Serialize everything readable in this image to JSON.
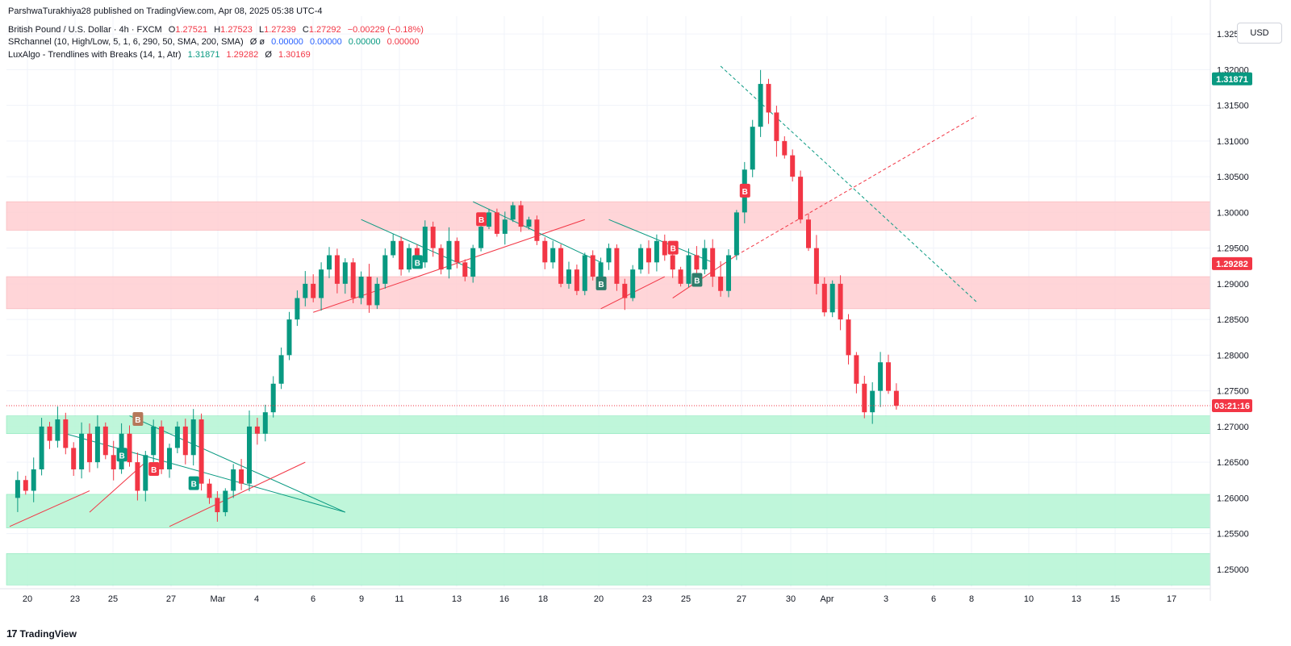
{
  "header": {
    "published": "ParshwaTurakhiya28 published on TradingView.com, Apr 08, 2025 05:38 UTC-4",
    "symbol": "British Pound / U.S. Dollar · 4h · FXCM",
    "ohlc": {
      "o_label": "O",
      "o": "1.27521",
      "h_label": "H",
      "h": "1.27523",
      "l_label": "L",
      "l": "1.27239",
      "c_label": "C",
      "c": "1.27292",
      "change": "−0.00229 (−0.18%)"
    },
    "indicator1": {
      "name": "SRchannel (10, High/Low, 5, 1, 6, 290, 50, SMA, 200, SMA)",
      "mark": "Ø ø",
      "v1": "0.00000",
      "v2": "0.00000",
      "v3": "0.00000",
      "v4": "0.00000"
    },
    "indicator2": {
      "name": "LuxAlgo - Trendlines with Breaks (14, 1, Atr)",
      "v1": "1.31871",
      "v2": "1.29282",
      "mark": "Ø",
      "v3": "1.30169"
    }
  },
  "currency": "USD",
  "footer": {
    "logo_mark": "17",
    "brand": "TradingView"
  },
  "colors": {
    "up": "#089981",
    "down": "#f23645",
    "teal_tag": "#2e7d6b",
    "zone_red": "#ffd1d4",
    "zone_green": "#b9f6d6",
    "orange_tag": "#b5785a"
  },
  "chart_data": {
    "type": "candlestick",
    "timeframe": "4h",
    "ylim": [
      1.2475,
      1.3275
    ],
    "y_ticks": [
      1.25,
      1.255,
      1.26,
      1.265,
      1.27,
      1.275,
      1.28,
      1.285,
      1.29,
      1.295,
      1.3,
      1.305,
      1.31,
      1.315,
      1.32,
      1.325
    ],
    "y_tick_labels": [
      "1.25000",
      "1.25500",
      "1.26000",
      "1.26500",
      "1.27000",
      "1.27500",
      "1.28000",
      "1.28500",
      "1.29000",
      "1.29500",
      "1.30000",
      "1.30500",
      "1.31000",
      "1.31500",
      "1.32000",
      "1.32500"
    ],
    "x_tick_labels": [
      "20",
      "23",
      "25",
      "27",
      "Mar",
      "4",
      "6",
      "9",
      "11",
      "13",
      "16",
      "18",
      "20",
      "23",
      "25",
      "27",
      "30",
      "Apr",
      "3",
      "6",
      "8",
      "10",
      "13",
      "15",
      "17"
    ],
    "price_labels": [
      {
        "value": 1.31871,
        "text": "1.31871",
        "color": "#089981"
      },
      {
        "value": 1.29282,
        "text": "1.29282",
        "color": "#f23645"
      },
      {
        "value": 1.27292,
        "text": "03:21:16",
        "color": "#f23645"
      }
    ],
    "zones": [
      {
        "low": 1.2975,
        "high": 1.3015,
        "type": "resistance"
      },
      {
        "low": 1.2865,
        "high": 1.291,
        "type": "resistance"
      },
      {
        "low": 1.269,
        "high": 1.2715,
        "type": "support"
      },
      {
        "low": 1.2558,
        "high": 1.2605,
        "type": "support"
      },
      {
        "low": 1.2478,
        "high": 1.2522,
        "type": "support"
      }
    ],
    "current_price": 1.27292,
    "path": [
      1.26,
      1.2625,
      1.261,
      1.264,
      1.27,
      1.268,
      1.271,
      1.267,
      1.264,
      1.269,
      1.265,
      1.27,
      1.266,
      1.264,
      1.269,
      1.265,
      1.261,
      1.266,
      1.27,
      1.264,
      1.267,
      1.27,
      1.266,
      1.271,
      1.262,
      1.26,
      1.258,
      1.261,
      1.264,
      1.262,
      1.27,
      1.269,
      1.272,
      1.276,
      1.28,
      1.285,
      1.288,
      1.29,
      1.288,
      1.292,
      1.294,
      1.29,
      1.293,
      1.288,
      1.291,
      1.287,
      1.29,
      1.294,
      1.296,
      1.292,
      1.295,
      1.293,
      1.298,
      1.295,
      1.292,
      1.296,
      1.293,
      1.291,
      1.295,
      1.298,
      1.3,
      1.297,
      1.299,
      1.301,
      1.298,
      1.299,
      1.296,
      1.293,
      1.295,
      1.29,
      1.292,
      1.289,
      1.294,
      1.291,
      1.293,
      1.295,
      1.29,
      1.288,
      1.292,
      1.295,
      1.293,
      1.296,
      1.294,
      1.292,
      1.29,
      1.294,
      1.292,
      1.295,
      1.291,
      1.289,
      1.294,
      1.3,
      1.306,
      1.312,
      1.318,
      1.314,
      1.31,
      1.308,
      1.305,
      1.299,
      1.295,
      1.29,
      1.286,
      1.29,
      1.285,
      1.28,
      1.276,
      1.272,
      1.275,
      1.279,
      1.275,
      1.27292
    ],
    "trendlines": [
      {
        "points": [
          [
            1.256,
            0
          ],
          [
            1.261,
            10
          ]
        ],
        "color": "#f23645"
      },
      {
        "points": [
          [
            1.269,
            7
          ],
          [
            1.258,
            42
          ]
        ],
        "color": "#089981"
      },
      {
        "points": [
          [
            1.258,
            10
          ],
          [
            1.265,
            17
          ]
        ],
        "color": "#f23645"
      },
      {
        "points": [
          [
            1.2715,
            15
          ],
          [
            1.258,
            42
          ]
        ],
        "color": "#089981"
      },
      {
        "points": [
          [
            1.256,
            20
          ],
          [
            1.265,
            37
          ]
        ],
        "color": "#f23645"
      },
      {
        "points": [
          [
            1.286,
            38
          ],
          [
            1.299,
            72
          ]
        ],
        "color": "#f23645"
      },
      {
        "points": [
          [
            1.299,
            44
          ],
          [
            1.292,
            58
          ]
        ],
        "color": "#089981"
      },
      {
        "points": [
          [
            1.3015,
            58
          ],
          [
            1.293,
            74
          ]
        ],
        "color": "#089981"
      },
      {
        "points": [
          [
            1.2865,
            74
          ],
          [
            1.291,
            82
          ]
        ],
        "color": "#f23645"
      },
      {
        "points": [
          [
            1.299,
            75
          ],
          [
            1.293,
            88
          ]
        ],
        "color": "#089981"
      },
      {
        "points": [
          [
            1.288,
            83
          ],
          [
            1.294,
            91
          ]
        ],
        "color": "#f23645"
      },
      {
        "points": [
          [
            1.3205,
            89
          ],
          [
            1.2875,
            121
          ]
        ],
        "color": "#089981",
        "dashed": true
      },
      {
        "points": [
          [
            1.294,
            91
          ],
          [
            1.3135,
            121
          ]
        ],
        "color": "#f23645",
        "dashed": true
      }
    ],
    "break_tags": [
      {
        "label": "B",
        "index": 14,
        "value": 1.266,
        "color": "#089981"
      },
      {
        "label": "B",
        "index": 16,
        "value": 1.271,
        "color": "#b5785a"
      },
      {
        "label": "B",
        "index": 18,
        "value": 1.264,
        "color": "#f23645"
      },
      {
        "label": "B",
        "index": 23,
        "value": 1.262,
        "color": "#089981"
      },
      {
        "label": "B",
        "index": 51,
        "value": 1.293,
        "color": "#089981"
      },
      {
        "label": "B",
        "index": 59,
        "value": 1.299,
        "color": "#f23645"
      },
      {
        "label": "B",
        "index": 74,
        "value": 1.29,
        "color": "#2e7d6b"
      },
      {
        "label": "B",
        "index": 83,
        "value": 1.295,
        "color": "#f23645"
      },
      {
        "label": "B",
        "index": 86,
        "value": 1.2905,
        "color": "#2e7d6b"
      },
      {
        "label": "B",
        "index": 92,
        "value": 1.303,
        "color": "#f23645"
      }
    ]
  }
}
